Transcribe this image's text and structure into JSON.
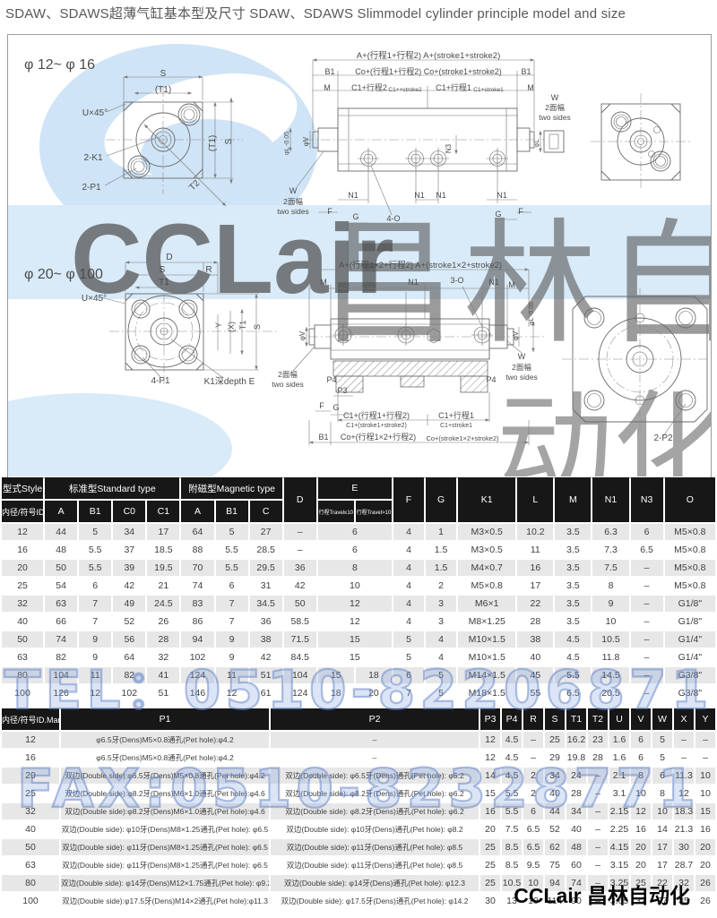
{
  "page": {
    "title": "SDAW、SDAWS超薄气缸基本型及尺寸 SDAW、SDAWS  Slimmodel cylinder principle model and size"
  },
  "watermarks": {
    "logo": "CCLair",
    "gray": "昌林自动化",
    "gray_bottom": "动化",
    "tel": "TEL：0510-82206871",
    "fax": "FAX:0510-82328771",
    "brand": "CCLair 昌林自动化"
  },
  "drawings": {
    "labels": [
      [
        "φ 12~ φ 16",
        18,
        38,
        16,
        0,
        "start"
      ],
      [
        "S",
        173,
        46,
        10,
        0,
        "middle"
      ],
      [
        "(T1)",
        173,
        64,
        10,
        0,
        "middle"
      ],
      [
        "U×45°",
        97,
        90,
        10,
        0,
        "middle"
      ],
      [
        "2-K1",
        95,
        140,
        10,
        0,
        "middle"
      ],
      [
        "2-P1",
        93,
        173,
        10,
        0,
        "middle"
      ],
      [
        "(T1)",
        231,
        121,
        10,
        -90,
        "middle"
      ],
      [
        "S",
        249,
        119,
        10,
        -90,
        "middle"
      ],
      [
        "T2",
        210,
        170,
        10,
        -45,
        "middle"
      ],
      [
        "A+(行程1+行程2)  A+(stroke1+stroke2)",
        469,
        26,
        9.5,
        0,
        "middle"
      ],
      [
        "B1",
        359,
        44,
        9,
        0,
        "middle"
      ],
      [
        "Co+(行程1+行程2)  Co+(stroke1+stroke2)",
        469,
        44,
        9,
        0,
        "middle"
      ],
      [
        "B1",
        578,
        44,
        9,
        0,
        "middle"
      ],
      [
        "M",
        356,
        62,
        9,
        0,
        "middle"
      ],
      [
        "C1+行程2",
        403,
        62,
        9,
        0,
        "middle"
      ],
      [
        "C1++stroke2",
        443,
        63,
        6.5,
        0,
        "middle"
      ],
      [
        "C1+行程1",
        497,
        62,
        9,
        0,
        "middle"
      ],
      [
        "C1+stroke1",
        536,
        63,
        6.5,
        0,
        "middle"
      ],
      [
        "M",
        583,
        62,
        9,
        0,
        "middle"
      ],
      [
        "φL -0.05",
        313,
        121,
        7,
        -90,
        "middle"
      ],
      [
        "φV",
        335,
        119,
        8,
        -90,
        "middle"
      ],
      [
        "W",
        318,
        177,
        9,
        0,
        "middle"
      ],
      [
        "2面幅",
        318,
        189,
        8.5,
        0,
        "middle"
      ],
      [
        "two sides",
        318,
        200,
        8.5,
        0,
        "middle"
      ],
      [
        "N1",
        385,
        182,
        9,
        0,
        "middle"
      ],
      [
        "N1",
        459,
        182,
        9,
        0,
        "middle"
      ],
      [
        "N1",
        483,
        182,
        9,
        0,
        "middle"
      ],
      [
        "N1",
        551,
        182,
        9,
        0,
        "middle"
      ],
      [
        "F",
        359,
        200,
        9,
        0,
        "middle"
      ],
      [
        "G",
        388,
        206,
        9,
        0,
        "middle"
      ],
      [
        "4-O",
        430,
        208,
        9,
        0,
        "middle"
      ],
      [
        "G",
        547,
        203,
        9,
        0,
        "middle"
      ],
      [
        "F",
        572,
        200,
        9,
        0,
        "middle"
      ],
      [
        "N3",
        494,
        127,
        8,
        -90,
        "middle"
      ],
      [
        "W",
        610,
        73,
        9,
        0,
        "middle"
      ],
      [
        "2面幅",
        610,
        84,
        8.5,
        0,
        "middle"
      ],
      [
        "two sides",
        610,
        95,
        8.5,
        0,
        "middle"
      ],
      [
        "φL",
        592,
        121,
        7,
        -90,
        "middle"
      ],
      [
        "φ 20~ φ 100",
        18,
        272,
        16,
        0,
        "start"
      ],
      [
        "D",
        180,
        251,
        10,
        0,
        "middle"
      ],
      [
        "S",
        172,
        265,
        10,
        0,
        "middle"
      ],
      [
        "R",
        224,
        265,
        10,
        0,
        "middle"
      ],
      [
        "T1",
        174,
        279,
        10,
        0,
        "middle"
      ],
      [
        "U×45°",
        96,
        297,
        10,
        0,
        "middle"
      ],
      [
        "4-P1",
        170,
        389,
        10,
        0,
        "middle"
      ],
      [
        "K1深depth E",
        247,
        390,
        10,
        0,
        "middle"
      ],
      [
        "Y",
        238,
        324,
        9,
        -90,
        "middle"
      ],
      [
        "(X)",
        252,
        326,
        9,
        -90,
        "middle"
      ],
      [
        "T1",
        265,
        324,
        9,
        -90,
        "middle"
      ],
      [
        "S",
        281,
        326,
        9,
        -90,
        "middle"
      ],
      [
        "A+(行程1×2+行程2)  A+(stroke1×2+stroke2)",
        460,
        260,
        9.5,
        0,
        "middle"
      ],
      [
        "M",
        352,
        279,
        9,
        0,
        "middle"
      ],
      [
        "N1",
        452,
        279,
        9,
        0,
        "middle"
      ],
      [
        "3-O",
        501,
        277,
        9,
        0,
        "middle"
      ],
      [
        "N1",
        542,
        279,
        9,
        0,
        "middle"
      ],
      [
        "M",
        562,
        282,
        9,
        0,
        "middle"
      ],
      [
        "φV",
        331,
        336,
        8,
        -90,
        "middle"
      ],
      [
        "2面幅",
        312,
        382,
        8.5,
        0,
        "middle"
      ],
      [
        "two sides",
        312,
        393,
        8.5,
        0,
        "middle"
      ],
      [
        "φL -0.05",
        586,
        311,
        7,
        -90,
        "middle"
      ],
      [
        "φV",
        569,
        336,
        8,
        -90,
        "middle"
      ],
      [
        "W",
        573,
        362,
        9,
        0,
        "middle"
      ],
      [
        "2面幅",
        573,
        374,
        8.5,
        0,
        "middle"
      ],
      [
        "two sides",
        573,
        385,
        8.5,
        0,
        "middle"
      ],
      [
        "P4",
        361,
        388,
        9,
        0,
        "middle"
      ],
      [
        "P4",
        539,
        388,
        9,
        0,
        "middle"
      ],
      [
        "P3",
        373,
        400,
        9,
        0,
        "middle"
      ],
      [
        "F",
        350,
        417,
        9,
        0,
        "middle"
      ],
      [
        "G",
        366,
        419,
        9,
        0,
        "middle"
      ],
      [
        "C1+(行程1+行程2)",
        411,
        428,
        9,
        0,
        "middle"
      ],
      [
        "C1+(stroke1+stroke2)",
        411,
        438,
        7,
        0,
        "middle"
      ],
      [
        "C1+行程1",
        500,
        428,
        9,
        0,
        "middle"
      ],
      [
        "C1+stroke1",
        500,
        438,
        7,
        0,
        "middle"
      ],
      [
        "B1",
        352,
        452,
        9,
        0,
        "middle"
      ],
      [
        "Co+(行程1×2+行程2)",
        413,
        452,
        9,
        0,
        "middle"
      ],
      [
        "Co+(stroke1×2+stroke2)",
        507,
        453,
        7.5,
        0,
        "middle"
      ],
      [
        "2-P2",
        731,
        453,
        10,
        0,
        "middle"
      ]
    ]
  },
  "table1": {
    "header": {
      "style": "型式Style",
      "id_mark": "内径/符号ID.Mark",
      "standard": "标准型Standard type",
      "magnetic": "附磁型Magnetic type",
      "a": "A",
      "b1": "B1",
      "c0": "C0",
      "c1": "C1",
      "ma": "A",
      "mb1": "B1",
      "mc": "C",
      "d": "D",
      "e": "E",
      "e1": "行程Travel≤10",
      "e2": "行程Travel>10",
      "f": "F",
      "g": "G",
      "k1": "K1",
      "l": "L",
      "m": "M",
      "n1": "N1",
      "n3": "N3",
      "o": "O"
    },
    "rows": [
      {
        "id": "12",
        "a": "44",
        "b1": "5",
        "c0": "34",
        "c1": "17",
        "ma": "64",
        "mb1": "5",
        "mc": "27",
        "d": "–",
        "e1": "6",
        "e2": null,
        "f": "4",
        "g": "1",
        "k1": "M3×0.5",
        "l": "10.2",
        "m": "3.5",
        "n1": "6.3",
        "n3": "6",
        "o": "M5×0.8"
      },
      {
        "id": "16",
        "a": "48",
        "b1": "5.5",
        "c0": "37",
        "c1": "18.5",
        "ma": "88",
        "mb1": "5.5",
        "mc": "28.5",
        "d": "–",
        "e1": "6",
        "e2": null,
        "f": "4",
        "g": "1.5",
        "k1": "M3×0.5",
        "l": "11",
        "m": "3.5",
        "n1": "7.3",
        "n3": "6.5",
        "o": "M5×0.8"
      },
      {
        "id": "20",
        "a": "50",
        "b1": "5.5",
        "c0": "39",
        "c1": "19.5",
        "ma": "70",
        "mb1": "5.5",
        "mc": "29.5",
        "d": "36",
        "e1": "8",
        "e2": null,
        "f": "4",
        "g": "1.5",
        "k1": "M4×0.7",
        "l": "16",
        "m": "3.5",
        "n1": "7.5",
        "n3": "–",
        "o": "M5×0.8"
      },
      {
        "id": "25",
        "a": "54",
        "b1": "6",
        "c0": "42",
        "c1": "21",
        "ma": "74",
        "mb1": "6",
        "mc": "31",
        "d": "42",
        "e1": "10",
        "e2": null,
        "f": "4",
        "g": "2",
        "k1": "M5×0.8",
        "l": "17",
        "m": "3.5",
        "n1": "8",
        "n3": "–",
        "o": "M5×0.8"
      },
      {
        "id": "32",
        "a": "63",
        "b1": "7",
        "c0": "49",
        "c1": "24.5",
        "ma": "83",
        "mb1": "7",
        "mc": "34.5",
        "d": "50",
        "e1": "12",
        "e2": null,
        "f": "4",
        "g": "3",
        "k1": "M6×1",
        "l": "22",
        "m": "3.5",
        "n1": "9",
        "n3": "–",
        "o": "G1/8\""
      },
      {
        "id": "40",
        "a": "66",
        "b1": "7",
        "c0": "52",
        "c1": "26",
        "ma": "86",
        "mb1": "7",
        "mc": "36",
        "d": "58.5",
        "e1": "12",
        "e2": null,
        "f": "4",
        "g": "3",
        "k1": "M8×1.25",
        "l": "28",
        "m": "3.5",
        "n1": "10",
        "n3": "–",
        "o": "G1/8\""
      },
      {
        "id": "50",
        "a": "74",
        "b1": "9",
        "c0": "56",
        "c1": "28",
        "ma": "94",
        "mb1": "9",
        "mc": "38",
        "d": "71.5",
        "e1": "15",
        "e2": null,
        "f": "5",
        "g": "4",
        "k1": "M10×1.5",
        "l": "38",
        "m": "4.5",
        "n1": "10.5",
        "n3": "–",
        "o": "G1/4\""
      },
      {
        "id": "63",
        "a": "82",
        "b1": "9",
        "c0": "64",
        "c1": "32",
        "ma": "102",
        "mb1": "9",
        "mc": "42",
        "d": "84.5",
        "e1": "15",
        "e2": null,
        "f": "5",
        "g": "4",
        "k1": "M10×1.5",
        "l": "40",
        "m": "4.5",
        "n1": "11.8",
        "n3": "–",
        "o": "G1/4\""
      },
      {
        "id": "80",
        "a": "104",
        "b1": "11",
        "c0": "82",
        "c1": "41",
        "ma": "124",
        "mb1": "11",
        "mc": "51",
        "d": "104",
        "e1": "15",
        "e2": "18",
        "f": "6",
        "g": "5",
        "k1": "M14×1.5",
        "l": "45",
        "m": "5.5",
        "n1": "14.5",
        "n3": "–",
        "o": "G3/8\""
      },
      {
        "id": "100",
        "a": "126",
        "b1": "12",
        "c0": "102",
        "c1": "51",
        "ma": "146",
        "mb1": "12",
        "mc": "61",
        "d": "124",
        "e1": "18",
        "e2": "20",
        "f": "7",
        "g": "5",
        "k1": "M18×1.5",
        "l": "55",
        "m": "6.5",
        "n1": "20.5",
        "n3": "–",
        "o": "G3/8\""
      }
    ]
  },
  "table2": {
    "header": {
      "id_mark": "内径/符号ID.Mark",
      "cols": [
        "P1",
        "P2",
        "P3",
        "P4",
        "R",
        "S",
        "T1",
        "T2",
        "U",
        "V",
        "W",
        "X",
        "Y"
      ]
    },
    "rows": [
      {
        "id": "12",
        "p1": "φ6.5牙(Dens)M5×0.8通孔(Pet hole):φ4.2",
        "p2": "–",
        "vals": [
          "12",
          "4.5",
          "–",
          "25",
          "16.2",
          "23",
          "1.6",
          "6",
          "5",
          "–",
          "–"
        ]
      },
      {
        "id": "16",
        "p1": "φ6.5牙(Dens)M5×0.8通孔(Pet hole):φ4.2",
        "p2": "–",
        "vals": [
          "12",
          "4.5",
          "–",
          "29",
          "19.8",
          "28",
          "1.6",
          "6",
          "5",
          "–",
          "–"
        ]
      },
      {
        "id": "20",
        "p1": "双边(Double side):φ6.5牙(Dens)M5×0.8通孔(Pet hole):φ4.2",
        "p2": "双边(Double side): φ6.5牙(Dens)通孔(Pet hole): φ5.2",
        "vals": [
          "14",
          "4.5",
          "2",
          "34",
          "24",
          "–",
          "2.1",
          "8",
          "6",
          "11.3",
          "10"
        ]
      },
      {
        "id": "25",
        "p1": "双边(Double side):φ8.2牙(Dens)M6×1.0通孔(Pet hole):φ4.6",
        "p2": "双边(Double side): φ8.2牙(Dens)通孔(Pet hole): φ6.2",
        "vals": [
          "15",
          "5.5",
          "2",
          "40",
          "28",
          "–",
          "3.1",
          "10",
          "8",
          "12",
          "10"
        ]
      },
      {
        "id": "32",
        "p1": "双边(Double side):φ8.2牙(Dens)M6×1.0通孔(Pet hole):φ4.6",
        "p2": "双边(Double side): φ8.2牙(Dens)通孔(Pet hole): φ6.2",
        "vals": [
          "16",
          "5.5",
          "6",
          "44",
          "34",
          "–",
          "2.15",
          "12",
          "10",
          "18.3",
          "15"
        ]
      },
      {
        "id": "40",
        "p1": "双边(Double side): φ10牙(Dens)M8×1.25通孔(Pet hole): φ6.5",
        "p2": "双边(Double side): φ10牙(Dens)通孔(Pet hole): φ8.2",
        "vals": [
          "20",
          "7.5",
          "6.5",
          "52",
          "40",
          "–",
          "2.25",
          "16",
          "14",
          "21.3",
          "16"
        ]
      },
      {
        "id": "50",
        "p1": "双边(Double side): φ11牙(Dens)M8×1.25通孔(Pet hole): φ6.5",
        "p2": "双边(Double side): φ11牙(Dens)通孔(Pet hole): φ8.5",
        "vals": [
          "25",
          "8.5",
          "6.5",
          "62",
          "48",
          "–",
          "4.15",
          "20",
          "17",
          "30",
          "20"
        ]
      },
      {
        "id": "63",
        "p1": "双边(Double side): φ11牙(Dens)M8×1.25通孔(Pet hole): φ6.5",
        "p2": "双边(Double side): φ11牙(Dens)通孔(Pet hole): φ8.5",
        "vals": [
          "25",
          "8.5",
          "9.5",
          "75",
          "60",
          "–",
          "3.15",
          "20",
          "17",
          "28.7",
          "20"
        ]
      },
      {
        "id": "80",
        "p1": "双边(Double side): φ14牙(Dens)M12×1.75通孔(Pet hole): φ9.2",
        "p2": "双边(Double side): φ14牙(Dens)通孔(Pet hole): φ12.3",
        "vals": [
          "25",
          "10.5",
          "10",
          "94",
          "74",
          "–",
          "3.25",
          "25",
          "22",
          "32",
          "26"
        ]
      },
      {
        "id": "100",
        "p1": "双边(Double side):φ17.5牙(Dens)M14×2通孔(Pet hole):φ11.3",
        "p2": "双边(Double side): φ17.5牙(Dens)通孔(Pet hole): φ14.2",
        "vals": [
          "30",
          "13",
          "10",
          "114",
          "90",
          "–",
          "3.65",
          "32",
          "27",
          "35",
          "26"
        ]
      }
    ]
  }
}
